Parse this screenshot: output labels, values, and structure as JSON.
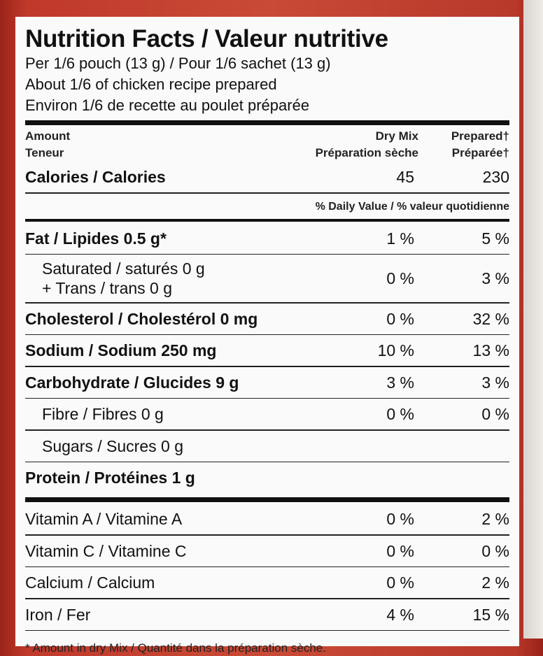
{
  "label": {
    "title": "Nutrition Facts / Valeur nutritive",
    "serving_lines": [
      "Per 1/6 pouch (13 g) / Pour 1/6 sachet (13 g)",
      "About 1/6 of chicken recipe prepared",
      "Environ 1/6 de recette au poulet préparée"
    ],
    "header": {
      "amount_en": "Amount",
      "amount_fr": "Teneur",
      "dry_en": "Dry Mix",
      "dry_fr": "Préparation sèche",
      "prep_en": "Prepared†",
      "prep_fr": "Préparée†"
    },
    "calories": {
      "label": "Calories / Calories",
      "dry": "45",
      "prepared": "230"
    },
    "daily_value_header": "% Daily Value / % valeur quotidienne",
    "nutrients": {
      "fat": {
        "label": "Fat / Lipides 0.5 g*",
        "dry": "1 %",
        "prepared": "5 %"
      },
      "saturated": {
        "label1": "Saturated / saturés 0 g",
        "label2": "+ Trans / trans 0 g",
        "dry": "0 %",
        "prepared": "3 %"
      },
      "cholesterol": {
        "label": "Cholesterol / Cholestérol 0 mg",
        "dry": "0 %",
        "prepared": "32 %"
      },
      "sodium": {
        "label": "Sodium / Sodium 250 mg",
        "dry": "10 %",
        "prepared": "13 %"
      },
      "carbohydrate": {
        "label": "Carbohydrate / Glucides 9 g",
        "dry": "3 %",
        "prepared": "3 %"
      },
      "fibre": {
        "label": "Fibre / Fibres 0 g",
        "dry": "0 %",
        "prepared": "0 %"
      },
      "sugars": {
        "label": "Sugars / Sucres 0 g"
      },
      "protein": {
        "label": "Protein / Protéines 1 g"
      }
    },
    "vitamins": [
      {
        "label": "Vitamin A / Vitamine A",
        "dry": "0 %",
        "prepared": "2 %"
      },
      {
        "label": "Vitamin C / Vitamine C",
        "dry": "0 %",
        "prepared": "0 %"
      },
      {
        "label": "Calcium / Calcium",
        "dry": "0 %",
        "prepared": "2 %"
      },
      {
        "label": "Iron / Fer",
        "dry": "4 %",
        "prepared": "15 %"
      }
    ],
    "footnote": "* Amount in dry Mix / Quantité dans la préparation sèche."
  }
}
